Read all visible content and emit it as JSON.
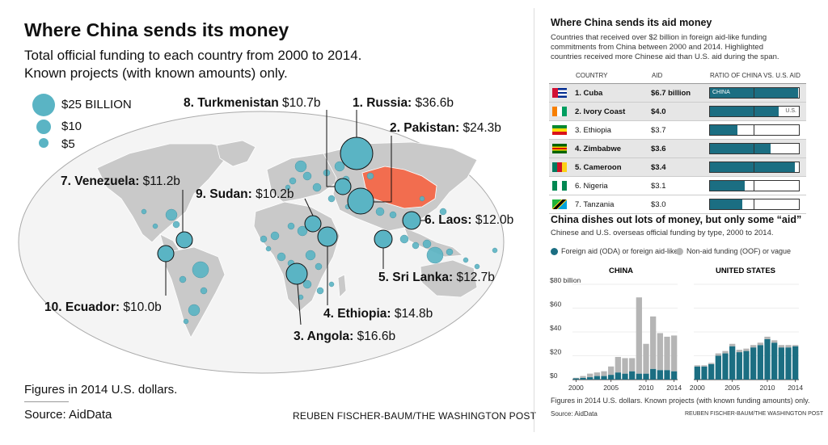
{
  "header": {
    "title": "Where China sends its money",
    "subtitle_line1": "Total official funding to each country from 2000 to 2014.",
    "subtitle_line2": "Known projects (with known amounts) only."
  },
  "size_legend": [
    "$25 BILLION",
    "$10",
    "$5"
  ],
  "colors": {
    "aid_teal": "#1b6e82",
    "bubble": "#5ab4c4",
    "china_fill": "#f26d4f",
    "land": "#c9c9c9",
    "ocean": "#f4f4f4",
    "nonaid_gray": "#b5b5b5"
  },
  "map_labels": [
    {
      "name": "1. Russia:",
      "value": "$36.6b"
    },
    {
      "name": "2. Pakistan:",
      "value": "$24.3b"
    },
    {
      "name": "3. Angola:",
      "value": "$16.6b"
    },
    {
      "name": "4. Ethiopia:",
      "value": "$14.8b"
    },
    {
      "name": "5. Sri Lanka:",
      "value": "$12.7b"
    },
    {
      "name": "6. Laos:",
      "value": "$12.0b"
    },
    {
      "name": "7. Venezuela:",
      "value": "$11.2b"
    },
    {
      "name": "8. Turkmenistan",
      "value": "$10.7b"
    },
    {
      "name": "9. Sudan:",
      "value": "$10.2b"
    },
    {
      "name": "10. Ecuador:",
      "value": "$10.0b"
    }
  ],
  "footer": {
    "note": "Figures in 2014 U.S. dollars.",
    "source": "Source: AidData",
    "credit": "REUBEN FISCHER-BAUM/THE WASHINGTON POST"
  },
  "aid_panel": {
    "title": "Where China sends its aid money",
    "description": "Countries that received over $2 billion in foreign aid-like funding commitments from China between 2000 and 2014. Highlighted countries received more Chinese aid than U.S. aid during the span.",
    "headers": [
      "COUNTRY",
      "AID",
      "RATIO OF CHINA VS. U.S. AID"
    ],
    "ratio_labels": {
      "china": "CHINA",
      "us": "U.S."
    },
    "rows": [
      {
        "country": "1. Cuba",
        "aid": "$6.7 billion",
        "ratio": 0.99,
        "highlight": true,
        "flag": "cuba"
      },
      {
        "country": "2. Ivory Coast",
        "aid": "$4.0",
        "ratio": 0.77,
        "highlight": true,
        "flag": "ivory-coast"
      },
      {
        "country": "3. Ethiopia",
        "aid": "$3.7",
        "ratio": 0.31,
        "highlight": false,
        "flag": "ethiopia"
      },
      {
        "country": "4. Zimbabwe",
        "aid": "$3.6",
        "ratio": 0.68,
        "highlight": true,
        "flag": "zimbabwe"
      },
      {
        "country": "5. Cameroon",
        "aid": "$3.4",
        "ratio": 0.95,
        "highlight": true,
        "flag": "cameroon"
      },
      {
        "country": "6. Nigeria",
        "aid": "$3.1",
        "ratio": 0.39,
        "highlight": false,
        "flag": "nigeria"
      },
      {
        "country": "7. Tanzania",
        "aid": "$3.0",
        "ratio": 0.36,
        "highlight": false,
        "flag": "tanzania"
      }
    ]
  },
  "funding_panel": {
    "title": "China dishes out lots of money, but only some “aid”",
    "subtitle": "Chinese and U.S. overseas official funding by type, 2000 to 2014.",
    "legend_aid": "Foreign aid (ODA) or foreign aid-like",
    "legend_nonaid": "Non-aid funding (OOF) or vague",
    "note": "Figures in 2014 U.S. dollars. Known projects (with known funding amounts) only.",
    "source": "Source: AidData",
    "credit": "REUBEN FISCHER-BAUM/THE WASHINGTON POST"
  },
  "chart_data": [
    {
      "type": "bar",
      "stacked": true,
      "title": "CHINA",
      "x": [
        2000,
        2001,
        2002,
        2003,
        2004,
        2005,
        2006,
        2007,
        2008,
        2009,
        2010,
        2011,
        2012,
        2013,
        2014
      ],
      "x_tick_labels": [
        "2000",
        "2005",
        "2010",
        "2014"
      ],
      "y_tick_labels": [
        "$80 billion",
        "$60",
        "$40",
        "$20",
        "$0"
      ],
      "ylim": [
        0,
        80
      ],
      "series": [
        {
          "name": "Foreign aid (ODA) or foreign aid-like",
          "values": [
            1,
            1.5,
            2,
            3,
            3,
            4,
            6,
            5,
            7,
            5,
            5,
            9,
            8,
            8,
            7
          ]
        },
        {
          "name": "Non-aid funding (OOF) or vague",
          "values": [
            0.5,
            1.5,
            3,
            3,
            4,
            7,
            13,
            13,
            11,
            64,
            25,
            44,
            31,
            28,
            30
          ]
        }
      ]
    },
    {
      "type": "bar",
      "stacked": true,
      "title": "UNITED STATES",
      "x": [
        2000,
        2001,
        2002,
        2003,
        2004,
        2005,
        2006,
        2007,
        2008,
        2009,
        2010,
        2011,
        2012,
        2013,
        2014
      ],
      "x_tick_labels": [
        "2000",
        "2005",
        "2010",
        "2014"
      ],
      "y_tick_labels": [],
      "ylim": [
        0,
        80
      ],
      "series": [
        {
          "name": "Foreign aid (ODA) or foreign aid-like",
          "values": [
            11,
            11,
            13,
            20,
            22,
            28,
            23,
            24,
            27,
            29,
            34,
            31,
            27,
            27,
            28
          ]
        },
        {
          "name": "Non-aid funding (OOF) or vague",
          "values": [
            1,
            1,
            1,
            2,
            2,
            2,
            2,
            2,
            2,
            2,
            2,
            2,
            2,
            2,
            1
          ]
        }
      ]
    }
  ]
}
